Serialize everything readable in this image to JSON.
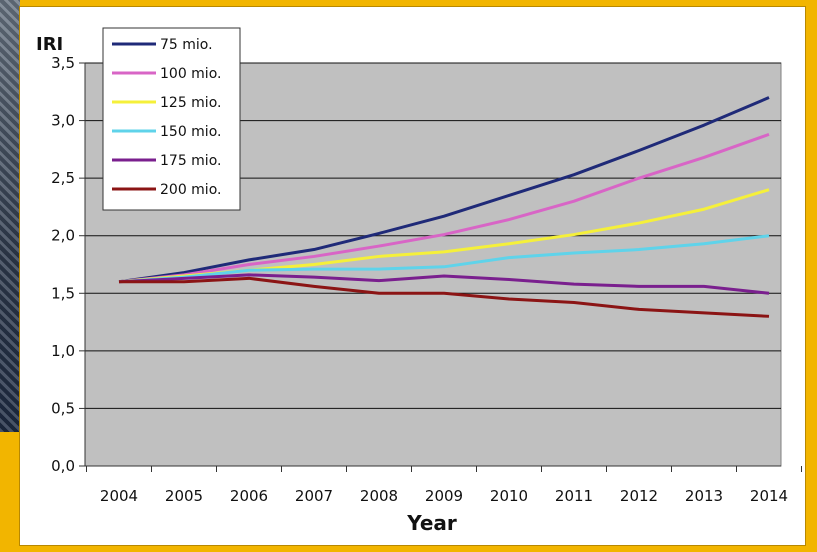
{
  "chart_data": {
    "type": "line",
    "title": "",
    "ylabel": "IRI",
    "xlabel": "Year",
    "x": [
      "2004",
      "2005",
      "2006",
      "2007",
      "2008",
      "2009",
      "2010",
      "2011",
      "2012",
      "2013",
      "2014"
    ],
    "ylim": [
      0,
      3.5
    ],
    "yticks": [
      "0,0",
      "0,5",
      "1,0",
      "1,5",
      "2,0",
      "2,5",
      "3,0",
      "3,5"
    ],
    "grid": true,
    "legend_position": "top-left",
    "series": [
      {
        "name": "75 mio.",
        "color": "#1f2a78",
        "values": [
          1.6,
          1.68,
          1.79,
          1.88,
          2.02,
          2.17,
          2.35,
          2.53,
          2.74,
          2.96,
          3.2
        ]
      },
      {
        "name": "100 mio.",
        "color": "#d865c6",
        "values": [
          1.6,
          1.66,
          1.75,
          1.82,
          1.91,
          2.01,
          2.14,
          2.3,
          2.5,
          2.68,
          2.88
        ]
      },
      {
        "name": "125 mio.",
        "color": "#f5f03a",
        "values": [
          1.6,
          1.65,
          1.7,
          1.75,
          1.82,
          1.86,
          1.93,
          2.01,
          2.11,
          2.23,
          2.4
        ]
      },
      {
        "name": "150 mio.",
        "color": "#5fd3ea",
        "values": [
          1.6,
          1.64,
          1.7,
          1.71,
          1.71,
          1.73,
          1.81,
          1.85,
          1.88,
          1.93,
          2.0
        ]
      },
      {
        "name": "175 mio.",
        "color": "#7a1f8e",
        "values": [
          1.6,
          1.63,
          1.66,
          1.64,
          1.61,
          1.65,
          1.62,
          1.58,
          1.56,
          1.56,
          1.5
        ]
      },
      {
        "name": "200 mio.",
        "color": "#8b1414",
        "values": [
          1.6,
          1.6,
          1.63,
          1.56,
          1.5,
          1.5,
          1.45,
          1.42,
          1.36,
          1.33,
          1.3
        ]
      }
    ]
  },
  "colors": {
    "plot_background": "#c0c0c0",
    "border_accent": "#f2b500"
  }
}
